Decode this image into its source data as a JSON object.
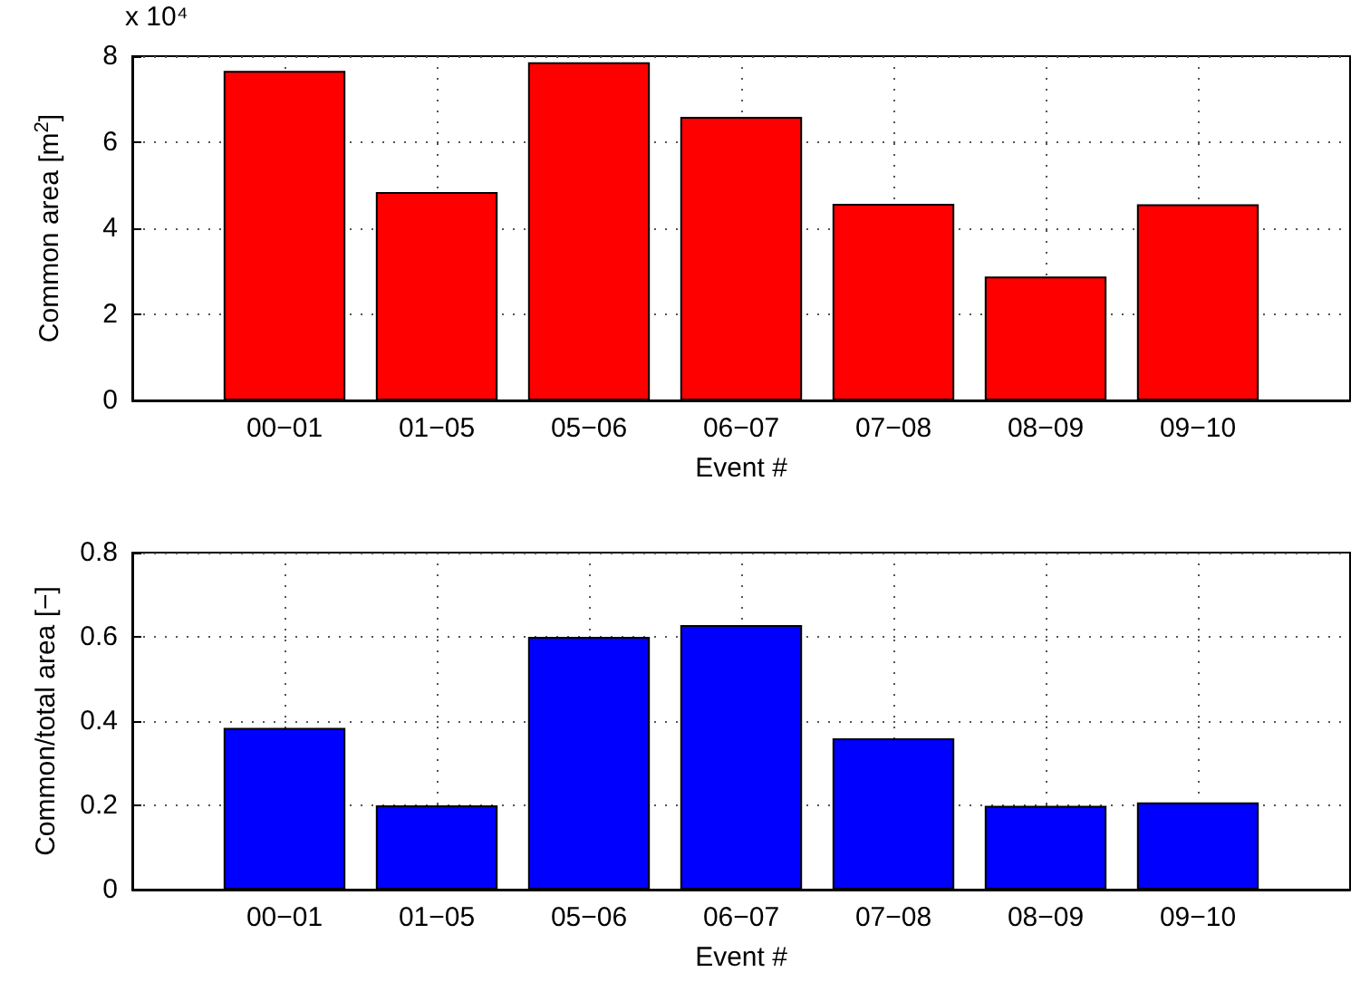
{
  "chart_data": [
    {
      "type": "bar",
      "ylabel": "Common area [m$^{2}$]",
      "xlabel": "Event #",
      "annotations": [
        "x 10⁴"
      ],
      "categories": [
        "00−01",
        "01−05",
        "05−06",
        "06−07",
        "07−08",
        "08−09",
        "09−10"
      ],
      "values": [
        7.66,
        4.84,
        7.86,
        6.59,
        4.57,
        2.88,
        4.56
      ],
      "color": "#ff0000",
      "ylim": [
        0,
        8
      ],
      "yticks": [
        0,
        2,
        4,
        6,
        8
      ],
      "grid": true
    },
    {
      "type": "bar",
      "ylabel": "Common/total area [−]",
      "xlabel": "Event #",
      "categories": [
        "00−01",
        "01−05",
        "05−06",
        "06−07",
        "07−08",
        "08−09",
        "09−10"
      ],
      "values": [
        0.384,
        0.2,
        0.6,
        0.628,
        0.359,
        0.199,
        0.207
      ],
      "color": "#0000ff",
      "ylim": [
        0,
        0.8
      ],
      "yticks": [
        0,
        0.2,
        0.4,
        0.6,
        0.8
      ],
      "grid": true
    }
  ]
}
